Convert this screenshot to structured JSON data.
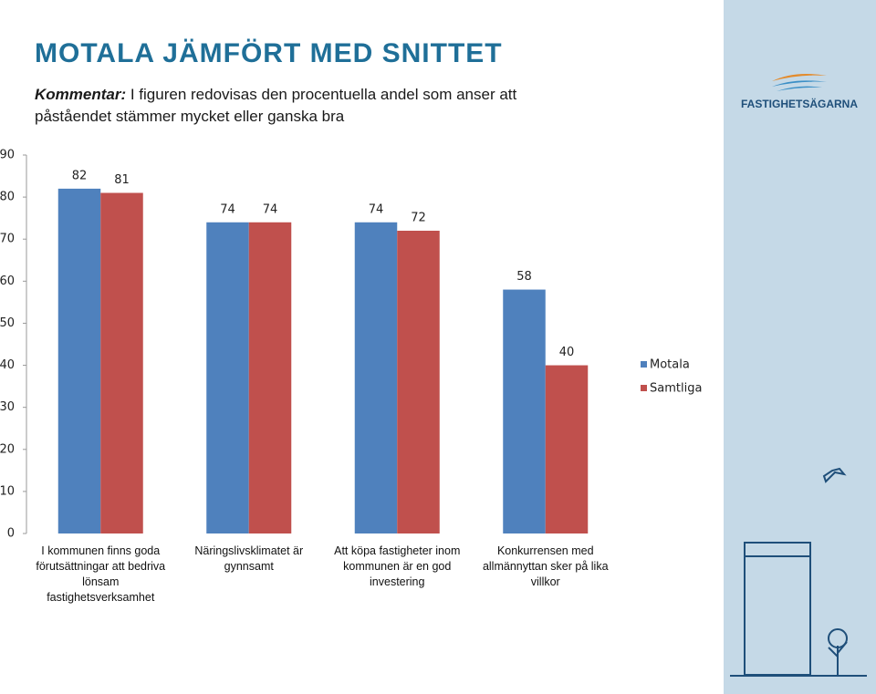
{
  "header": {
    "title": "MOTALA JÄMFÖRT MED SNITTET",
    "comment_label": "Kommentar:",
    "comment": "I figuren redovisas den procentuella andel som anser att påståendet stämmer mycket eller ganska bra",
    "logo": "FASTIGHETSÄGARNA"
  },
  "chart_data": {
    "type": "bar",
    "categories": [
      "I kommunen finns goda förutsättningar att bedriva lönsam fastighetsverksamhet",
      "Näringslivsklimatet är gynnsamt",
      "Att köpa fastigheter inom kommunen är en god investering",
      "Konkurrensen med allmännyttan sker på lika villkor"
    ],
    "series": [
      {
        "name": "Motala",
        "color": "#4f81bd",
        "values": [
          82,
          74,
          74,
          58
        ]
      },
      {
        "name": "Samtliga",
        "color": "#c0504d",
        "values": [
          81,
          74,
          72,
          40
        ]
      }
    ],
    "ylim": [
      0,
      90
    ],
    "yticks": [
      0,
      10,
      20,
      30,
      40,
      50,
      60,
      70,
      80,
      90
    ],
    "grid": false,
    "legend": "right"
  }
}
